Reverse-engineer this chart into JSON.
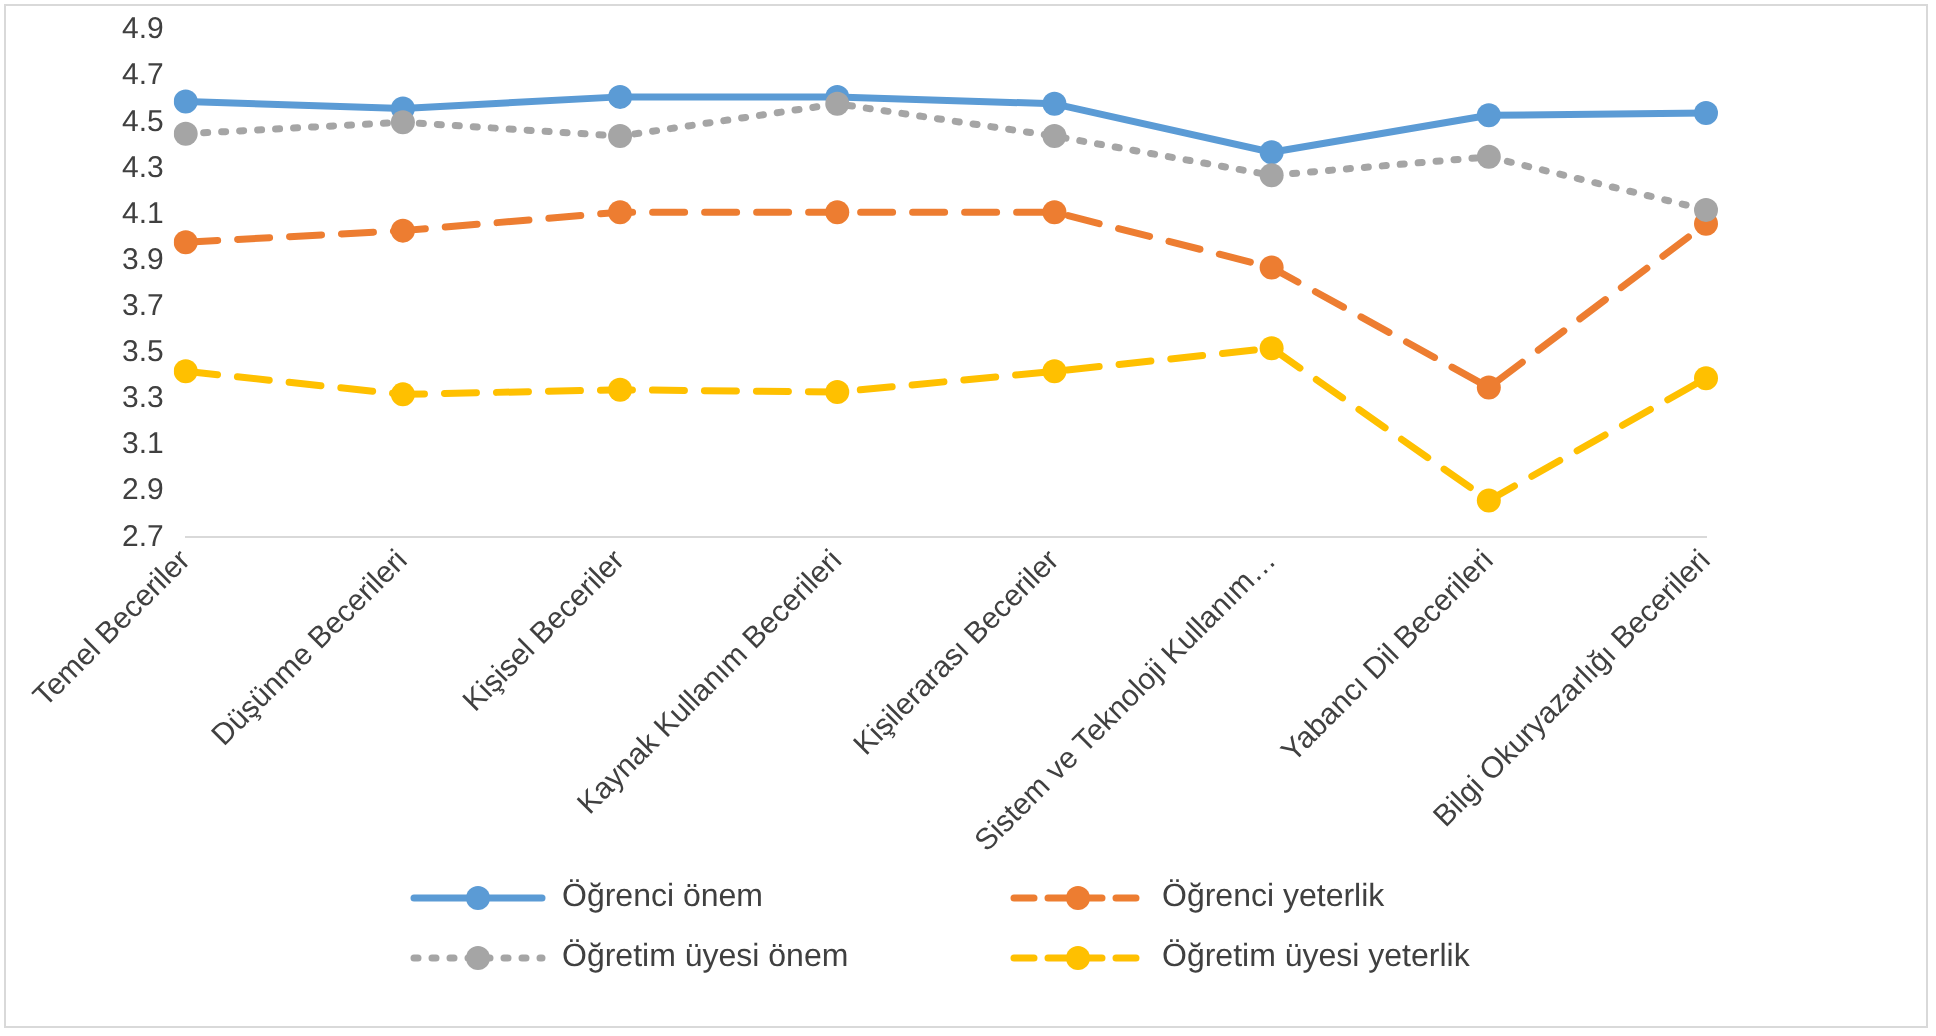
{
  "chart_data": {
    "type": "line",
    "categories": [
      "Temel Beceriler",
      "Düşünme Becerileri",
      "Kişisel Beceriler",
      "Kaynak Kullanım Becerileri",
      "Kişilerarası Beceriler",
      "Sistem ve Teknoloji Kullanım…",
      "Yabancı Dil Becerileri",
      "Bilgi Okuryazarlığı Becerileri"
    ],
    "series": [
      {
        "name": "Öğrenci önem",
        "color": "#5b9bd5",
        "line_style": "solid",
        "values": [
          4.59,
          4.56,
          4.61,
          4.61,
          4.58,
          4.37,
          4.53,
          4.54
        ]
      },
      {
        "name": "Öğrenci  yeterlik",
        "color": "#ed7d31",
        "line_style": "dashed",
        "values": [
          3.98,
          4.03,
          4.11,
          4.11,
          4.11,
          3.87,
          3.35,
          4.06
        ]
      },
      {
        "name": "Öğretim üyesi önem",
        "color": "#a5a5a5",
        "line_style": "dotted",
        "values": [
          4.45,
          4.5,
          4.44,
          4.58,
          4.44,
          4.27,
          4.35,
          4.12
        ]
      },
      {
        "name": "Öğretim üyesi yeterlik",
        "color": "#ffc000",
        "line_style": "dashed",
        "values": [
          3.42,
          3.32,
          3.34,
          3.33,
          3.42,
          3.52,
          2.86,
          3.39
        ]
      }
    ],
    "ylim": [
      2.7,
      4.9
    ],
    "yticks": [
      2.7,
      2.9,
      3.1,
      3.3,
      3.5,
      3.7,
      3.9,
      4.1,
      4.3,
      4.5,
      4.7,
      4.9
    ],
    "grid": false,
    "legend": "bottom",
    "marker": "circle"
  }
}
